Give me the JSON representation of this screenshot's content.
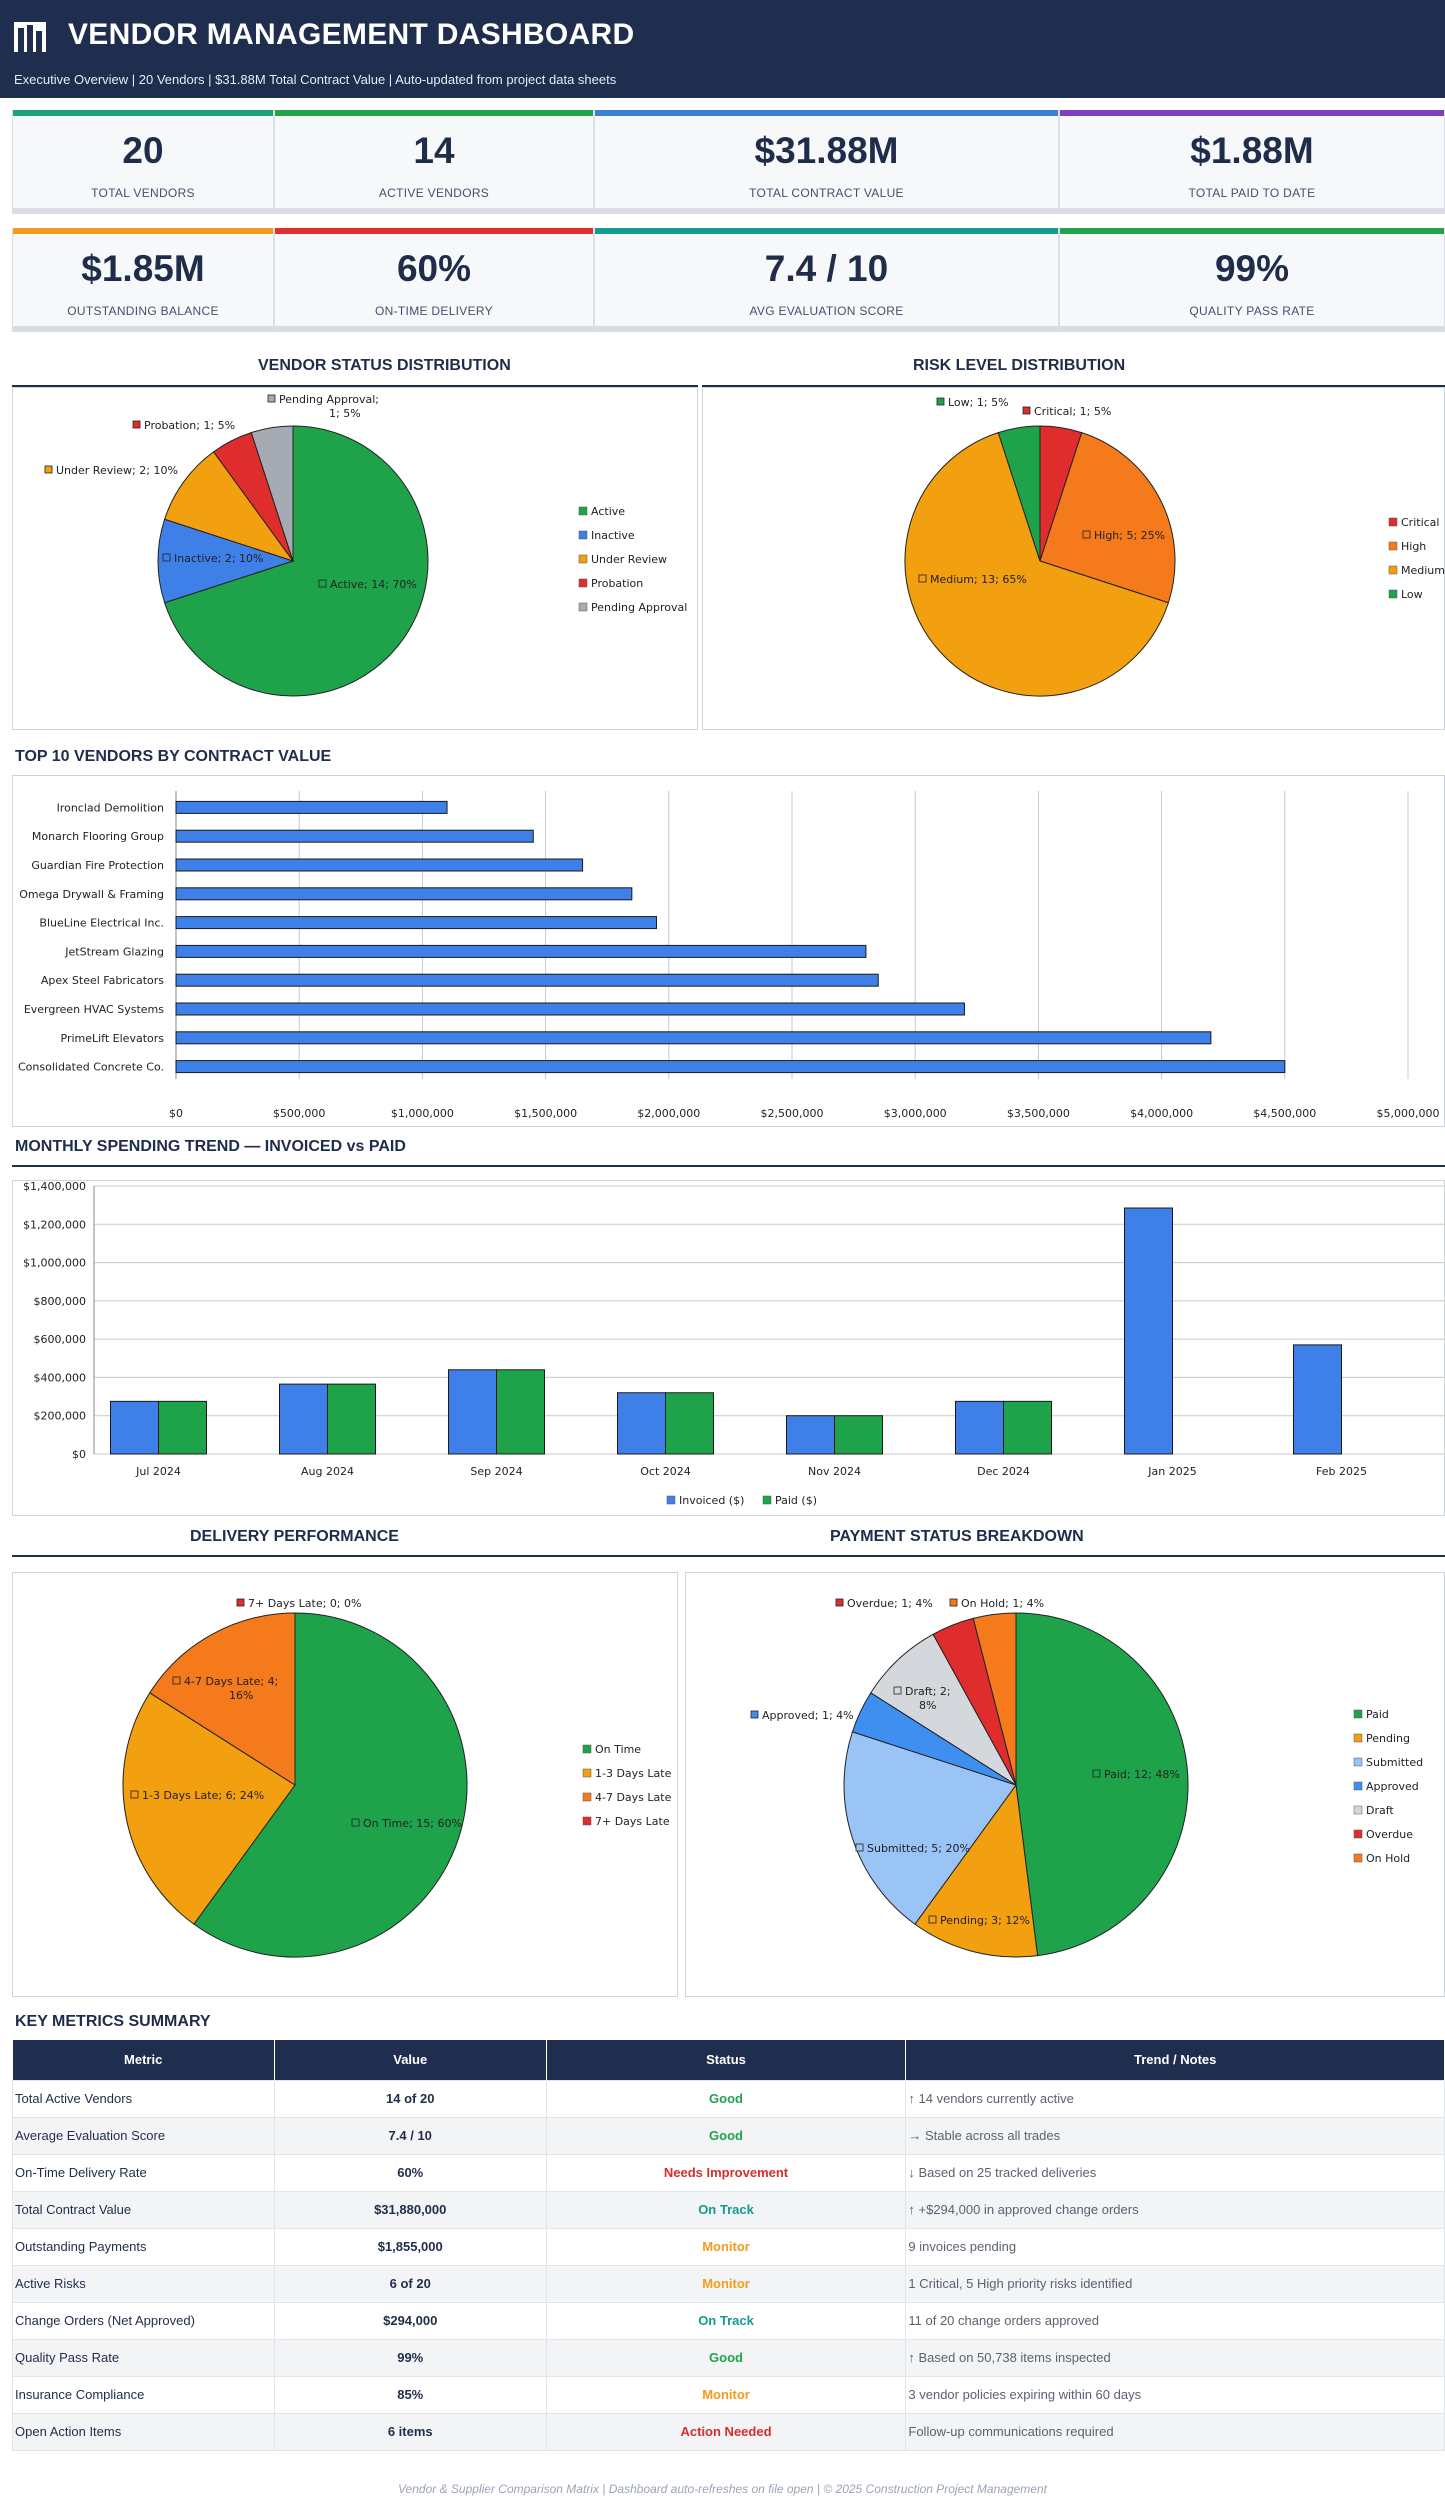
{
  "header": {
    "title": "VENDOR MANAGEMENT DASHBOARD",
    "subtitle": "Executive Overview   |   20 Vendors   |   $31.88M Total Contract Value   |   Auto-updated from project data sheets"
  },
  "kpis": [
    {
      "value": "20",
      "label": "TOTAL VENDORS",
      "color": "#1aa179"
    },
    {
      "value": "14",
      "label": "ACTIVE VENDORS",
      "color": "#22a34a"
    },
    {
      "value": "$31.88M",
      "label": "TOTAL CONTRACT VALUE",
      "color": "#3b7fd6"
    },
    {
      "value": "$1.88M",
      "label": "TOTAL PAID TO DATE",
      "color": "#7d3fc4"
    },
    {
      "value": "$1.85M",
      "label": "OUTSTANDING BALANCE",
      "color": "#f29b1d"
    },
    {
      "value": "60%",
      "label": "ON-TIME DELIVERY",
      "color": "#e02f2f"
    },
    {
      "value": "7.4 / 10",
      "label": "AVG EVALUATION SCORE",
      "color": "#139b8f"
    },
    {
      "value": "99%",
      "label": "QUALITY PASS RATE",
      "color": "#22a34a"
    }
  ],
  "sections": {
    "vendor_status": "VENDOR STATUS DISTRIBUTION",
    "risk": "RISK LEVEL DISTRIBUTION",
    "top10": "TOP 10 VENDORS BY CONTRACT VALUE",
    "monthly": "MONTHLY SPENDING TREND  —  INVOICED vs PAID",
    "delivery": "DELIVERY PERFORMANCE",
    "payment": "PAYMENT STATUS BREAKDOWN",
    "summary": "KEY METRICS SUMMARY"
  },
  "chart_data": [
    {
      "id": "vendor_status",
      "type": "pie",
      "title": "VENDOR STATUS DISTRIBUTION",
      "legend": "right",
      "slices": [
        {
          "label": "Active",
          "value": 14,
          "pct": "70%",
          "color": "#1ea34a",
          "text": "Active; 14; 70%"
        },
        {
          "label": "Inactive",
          "value": 2,
          "pct": "10%",
          "color": "#3f7fe8",
          "text": "Inactive; 2; 10%"
        },
        {
          "label": "Under Review",
          "value": 2,
          "pct": "10%",
          "color": "#f29f10",
          "text": "Under Review; 2; 10%"
        },
        {
          "label": "Probation",
          "value": 1,
          "pct": "5%",
          "color": "#df2c2c",
          "text": "Probation; 1; 5%"
        },
        {
          "label": "Pending Approval",
          "value": 1,
          "pct": "5%",
          "color": "#a6abb3",
          "text": "Pending Approval; 1; 5%"
        }
      ]
    },
    {
      "id": "risk",
      "type": "pie",
      "title": "RISK LEVEL DISTRIBUTION",
      "legend": "right",
      "slices": [
        {
          "label": "Critical",
          "value": 1,
          "pct": "5%",
          "color": "#df2c2c",
          "text": "Critical; 1; 5%"
        },
        {
          "label": "High",
          "value": 5,
          "pct": "25%",
          "color": "#f47a1c",
          "text": "High; 5; 25%"
        },
        {
          "label": "Medium",
          "value": 13,
          "pct": "65%",
          "color": "#f29f10",
          "text": "Medium; 13; 65%"
        },
        {
          "label": "Low",
          "value": 1,
          "pct": "5%",
          "color": "#1ea34a",
          "text": "Low; 1; 5%"
        }
      ]
    },
    {
      "id": "top10",
      "type": "bar",
      "orientation": "horizontal",
      "title": "TOP 10 VENDORS BY CONTRACT VALUE",
      "categories": [
        "Ironclad Demolition",
        "Monarch Flooring Group",
        "Guardian Fire Protection",
        "Omega Drywall & Framing",
        "BlueLine Electrical Inc.",
        "JetStream Glazing",
        "Apex Steel Fabricators",
        "Evergreen HVAC Systems",
        "PrimeLift Elevators",
        "Consolidated Concrete Co."
      ],
      "values": [
        1100000,
        1450000,
        1650000,
        1850000,
        1950000,
        2800000,
        2850000,
        3200000,
        4200000,
        4500000
      ],
      "xlim": [
        0,
        5000000
      ],
      "ticks": [
        "$0",
        "$500,000",
        "$1,000,000",
        "$1,500,000",
        "$2,000,000",
        "$2,500,000",
        "$3,000,000",
        "$3,500,000",
        "$4,000,000",
        "$4,500,000",
        "$5,000,000"
      ],
      "color": "#3f7fe8",
      "grid": true
    },
    {
      "id": "monthly",
      "type": "bar",
      "title": "MONTHLY SPENDING TREND — INVOICED vs PAID",
      "categories": [
        "Jul 2024",
        "Aug 2024",
        "Sep 2024",
        "Oct 2024",
        "Nov 2024",
        "Dec 2024",
        "Jan 2025",
        "Feb 2025"
      ],
      "series": [
        {
          "name": "Invoiced ($)",
          "color": "#3f7fe8",
          "values": [
            275000,
            365000,
            440000,
            320000,
            200000,
            275000,
            1285000,
            570000
          ]
        },
        {
          "name": "Paid ($)",
          "color": "#1ea34a",
          "values": [
            275000,
            365000,
            440000,
            320000,
            200000,
            275000,
            0,
            0
          ]
        }
      ],
      "ylim": [
        0,
        1400000
      ],
      "ticks": [
        "$0",
        "$200,000",
        "$400,000",
        "$600,000",
        "$800,000",
        "$1,000,000",
        "$1,200,000",
        "$1,400,000"
      ],
      "grid": true,
      "legend": "bottom"
    },
    {
      "id": "delivery",
      "type": "pie",
      "title": "DELIVERY PERFORMANCE",
      "legend": "right",
      "slices": [
        {
          "label": "On Time",
          "value": 15,
          "pct": "60%",
          "color": "#1ea34a",
          "text": "On Time; 15; 60%"
        },
        {
          "label": "1-3 Days Late",
          "value": 6,
          "pct": "24%",
          "color": "#f29f10",
          "text": "1-3 Days Late; 6; 24%"
        },
        {
          "label": "4-7 Days Late",
          "value": 4,
          "pct": "16%",
          "color": "#f47a1c",
          "text": "4-7 Days Late; 4; 16%"
        },
        {
          "label": "7+ Days Late",
          "value": 0,
          "pct": "0%",
          "color": "#df2c2c",
          "text": "7+ Days Late; 0; 0%"
        }
      ]
    },
    {
      "id": "payment",
      "type": "pie",
      "title": "PAYMENT STATUS BREAKDOWN",
      "legend": "right",
      "slices": [
        {
          "label": "Paid",
          "value": 12,
          "pct": "48%",
          "color": "#1ea34a",
          "text": "Paid; 12; 48%"
        },
        {
          "label": "Pending",
          "value": 3,
          "pct": "12%",
          "color": "#f29f10",
          "text": "Pending; 3; 12%"
        },
        {
          "label": "Submitted",
          "value": 5,
          "pct": "20%",
          "color": "#99c4f5",
          "text": "Submitted; 5; 20%"
        },
        {
          "label": "Approved",
          "value": 1,
          "pct": "4%",
          "color": "#3f8ff0",
          "text": "Approved; 1; 4%"
        },
        {
          "label": "Draft",
          "value": 2,
          "pct": "8%",
          "color": "#d4d7db",
          "text": "Draft; 2; 8%"
        },
        {
          "label": "Overdue",
          "value": 1,
          "pct": "4%",
          "color": "#df2c2c",
          "text": "Overdue; 1; 4%"
        },
        {
          "label": "On Hold",
          "value": 1,
          "pct": "4%",
          "color": "#f47a1c",
          "text": "On Hold; 1; 4%"
        }
      ]
    }
  ],
  "table": {
    "headers": [
      "Metric",
      "Value",
      "Status",
      "Trend / Notes"
    ],
    "rows": [
      {
        "metric": "Total Active Vendors",
        "value": "14 of 20",
        "status": "Good",
        "status_color": "#22a34a",
        "note": "↑  14 vendors currently active"
      },
      {
        "metric": "Average Evaluation Score",
        "value": "7.4 / 10",
        "status": "Good",
        "status_color": "#22a34a",
        "note": "→  Stable across all trades"
      },
      {
        "metric": "On-Time Delivery Rate",
        "value": "60%",
        "status": "Needs Improvement",
        "status_color": "#d62d2d",
        "note": "↓  Based on 25 tracked deliveries"
      },
      {
        "metric": "Total Contract Value",
        "value": "$31,880,000",
        "status": "On Track",
        "status_color": "#139b8f",
        "note": "↑  +$294,000 in approved change orders"
      },
      {
        "metric": "Outstanding Payments",
        "value": "$1,855,000",
        "status": "Monitor",
        "status_color": "#f29b1d",
        "note": "9 invoices pending"
      },
      {
        "metric": "Active Risks",
        "value": "6 of 20",
        "status": "Monitor",
        "status_color": "#f29b1d",
        "note": "1 Critical, 5 High priority risks identified"
      },
      {
        "metric": "Change Orders (Net Approved)",
        "value": "$294,000",
        "status": "On Track",
        "status_color": "#139b8f",
        "note": "11 of 20 change orders approved"
      },
      {
        "metric": "Quality Pass Rate",
        "value": "99%",
        "status": "Good",
        "status_color": "#22a34a",
        "note": "↑  Based on 50,738 items inspected"
      },
      {
        "metric": "Insurance Compliance",
        "value": "85%",
        "status": "Monitor",
        "status_color": "#f29b1d",
        "note": "3 vendor policies expiring within 60 days"
      },
      {
        "metric": "Open Action Items",
        "value": "6 items",
        "status": "Action Needed",
        "status_color": "#d62d2d",
        "note": "Follow-up communications required"
      }
    ]
  },
  "footer": "Vendor & Supplier Comparison Matrix   |   Dashboard auto-refreshes on file open   |   © 2025 Construction Project Management"
}
